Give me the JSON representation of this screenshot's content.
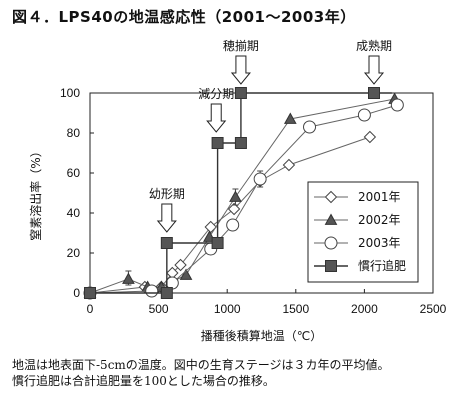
{
  "figure": {
    "title": "図４．LPS40の地温感応性（2001～2003年）",
    "caption_line1": "地温は地表面下-5cmの温度。図中の生育ステージは３カ年の平均値。",
    "caption_line2": "慣行追肥は合計追肥量を100とした場合の推移。"
  },
  "chart_data": {
    "type": "line",
    "title": "",
    "xlabel": "播種後積算地温（℃）",
    "ylabel": "窒素溶出率（%）",
    "xlim": [
      0,
      2500
    ],
    "ylim": [
      0,
      100
    ],
    "x_ticks": [
      0,
      500,
      1000,
      1500,
      2000,
      2500
    ],
    "y_ticks": [
      0,
      20,
      40,
      60,
      80,
      100
    ],
    "legend_position": "center-right",
    "series": [
      {
        "name": "2001年",
        "marker": "diamond-open",
        "color": "#555555",
        "points": [
          [
            0,
            0
          ],
          [
            400,
            3
          ],
          [
            520,
            3
          ],
          [
            600,
            10
          ],
          [
            660,
            14
          ],
          [
            880,
            33
          ],
          [
            1050,
            42
          ],
          [
            1240,
            56
          ],
          [
            1450,
            64
          ],
          [
            2040,
            78
          ]
        ],
        "error_bars": []
      },
      {
        "name": "2002年",
        "marker": "triangle-filled",
        "color": "#555555",
        "points": [
          [
            0,
            0
          ],
          [
            280,
            7
          ],
          [
            420,
            3
          ],
          [
            520,
            3
          ],
          [
            700,
            9
          ],
          [
            870,
            28
          ],
          [
            1060,
            48
          ],
          [
            1460,
            87
          ],
          [
            2220,
            97
          ]
        ],
        "error_bars": [
          [
            280,
            4,
            11
          ],
          [
            1060,
            44,
            52
          ]
        ]
      },
      {
        "name": "2003年",
        "marker": "circle-open",
        "color": "#555555",
        "points": [
          [
            0,
            0
          ],
          [
            450,
            1
          ],
          [
            600,
            5
          ],
          [
            880,
            22
          ],
          [
            1040,
            34
          ],
          [
            1240,
            57
          ],
          [
            1600,
            83
          ],
          [
            2000,
            89
          ],
          [
            2240,
            94
          ]
        ],
        "error_bars": [
          [
            1240,
            53,
            61
          ]
        ]
      },
      {
        "name": "慣行追肥",
        "marker": "square-filled",
        "color": "#555555",
        "step": true,
        "points": [
          [
            0,
            0
          ],
          [
            430,
            0
          ],
          [
            560,
            0
          ],
          [
            560,
            25
          ],
          [
            930,
            25
          ],
          [
            930,
            75
          ],
          [
            1100,
            75
          ],
          [
            1100,
            100
          ],
          [
            2070,
            100
          ],
          [
            2200,
            100
          ]
        ],
        "marker_points": [
          [
            0,
            0
          ],
          [
            560,
            0
          ],
          [
            560,
            25
          ],
          [
            930,
            25
          ],
          [
            930,
            75
          ],
          [
            1100,
            75
          ],
          [
            1100,
            100
          ],
          [
            2070,
            100
          ]
        ]
      }
    ],
    "stages": [
      {
        "label": "幼形期",
        "x": 560
      },
      {
        "label": "減分期",
        "x": 920
      },
      {
        "label": "穂揃期",
        "x": 1100
      },
      {
        "label": "成熟期",
        "x": 2070
      }
    ]
  }
}
